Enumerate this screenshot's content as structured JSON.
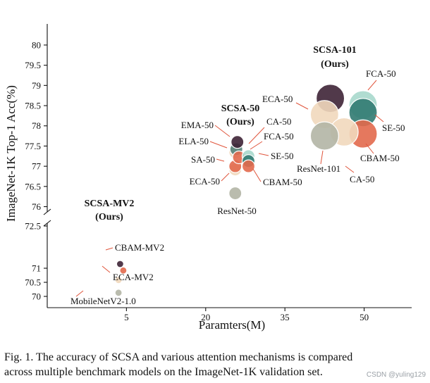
{
  "chart_data": {
    "type": "scatter",
    "title": "",
    "xlabel": "Paramters(M)",
    "ylabel": "ImageNet-1K Top-1 Acc(%)",
    "x_ticks": [
      5,
      20,
      35,
      50
    ],
    "y_ticks_upper": [
      76,
      76.5,
      77,
      77.5,
      78,
      78.5,
      79,
      79.5,
      80
    ],
    "y_ticks_lower": [
      70,
      70.5,
      71,
      72.5
    ],
    "y_tick_labels_upper": [
      "76",
      "76.5",
      "77",
      "77.5",
      "78",
      "78.5",
      "79",
      "79.5",
      "80"
    ],
    "y_tick_labels_lower": [
      "70",
      "70.5",
      "71",
      "72.5"
    ],
    "xlim": [
      -10,
      59
    ],
    "ylim_upper": [
      75.8,
      80.4
    ],
    "ylim_lower": [
      69.6,
      72.7
    ],
    "axis_break": true,
    "grid": false,
    "points": [
      {
        "name": "MobileNetV2-1.0",
        "x": 3.5,
        "y": 70.13,
        "color": "#b3b5a5"
      },
      {
        "name": "ECA-MV2",
        "x": 3.5,
        "y": 70.58,
        "color": "#f1d8bd"
      },
      {
        "name": "CBAM-MV2",
        "x": 4.4,
        "y": 70.92,
        "color": "#e2694c"
      },
      {
        "name": "SCSA-MV2 (Ours)",
        "x": 3.8,
        "y": 71.15,
        "color": "#3e2336"
      },
      {
        "name": "ResNet-50",
        "x": 25.6,
        "y": 76.33,
        "color": "#b3b5a5"
      },
      {
        "name": "ECA-50",
        "x": 25.6,
        "y": 76.92,
        "color": "#f1d8bd"
      },
      {
        "name": "SA-50",
        "x": 25.6,
        "y": 77.0,
        "color": "#e2694c"
      },
      {
        "name": "ELA-50",
        "x": 25.6,
        "y": 77.35,
        "color": "#f1d8bd"
      },
      {
        "name": "EMA-50",
        "x": 25.8,
        "y": 77.42,
        "color": "#56837b"
      },
      {
        "name": "SCSA-50 (Ours)",
        "x": 26.0,
        "y": 77.6,
        "color": "#3e2336"
      },
      {
        "name": "CA-50",
        "x": 26.3,
        "y": 77.22,
        "color": "#e2694c"
      },
      {
        "name": "FCA-50",
        "x": 28.1,
        "y": 77.25,
        "color": "#a7d8cc"
      },
      {
        "name": "SE-50",
        "x": 28.1,
        "y": 77.13,
        "color": "#317a71"
      },
      {
        "name": "CBAM-50",
        "x": 28.1,
        "y": 77.0,
        "color": "#e2694c"
      },
      {
        "name": "SCSA-101 (Ours)",
        "x": 43.6,
        "y": 78.68,
        "color": "#3e2336"
      },
      {
        "name": "FCA-50",
        "x": 49.8,
        "y": 78.52,
        "color": "#a7d8cc"
      },
      {
        "name": "SE-50",
        "x": 49.8,
        "y": 78.33,
        "color": "#317a71"
      },
      {
        "name": "ECA-50",
        "x": 42.5,
        "y": 78.28,
        "color": "#f1d8bd"
      },
      {
        "name": "CBAM-50",
        "x": 49.8,
        "y": 77.8,
        "color": "#e2694c"
      },
      {
        "name": "CA-50",
        "x": 46.2,
        "y": 77.85,
        "color": "#f1d8bd"
      },
      {
        "name": "ResNet-101",
        "x": 42.5,
        "y": 77.75,
        "color": "#b3b5a5"
      }
    ],
    "labels": [
      "MobileNetV2-1.0",
      "ECA-MV2",
      "CBAM-MV2",
      "SCSA-MV2",
      "(Ours)",
      "ResNet-50",
      "ECA-50",
      "SA-50",
      "ELA-50",
      "EMA-50",
      "SCSA-50",
      "(Ours)",
      "CA-50",
      "FCA-50",
      "SE-50",
      "CBAM-50",
      "SCSA-101",
      "(Ours)",
      "FCA-50",
      "ECA-50",
      "SE-50",
      "CBAM-50",
      "CA-50",
      "ResNet-101"
    ]
  },
  "caption": {
    "line1": "Fig. 1.  The accuracy of SCSA and various attention mechanisms is compared",
    "line2": "across multiple benchmark models on the ImageNet-1K validation set."
  },
  "watermark": "CSDN @yuling129"
}
